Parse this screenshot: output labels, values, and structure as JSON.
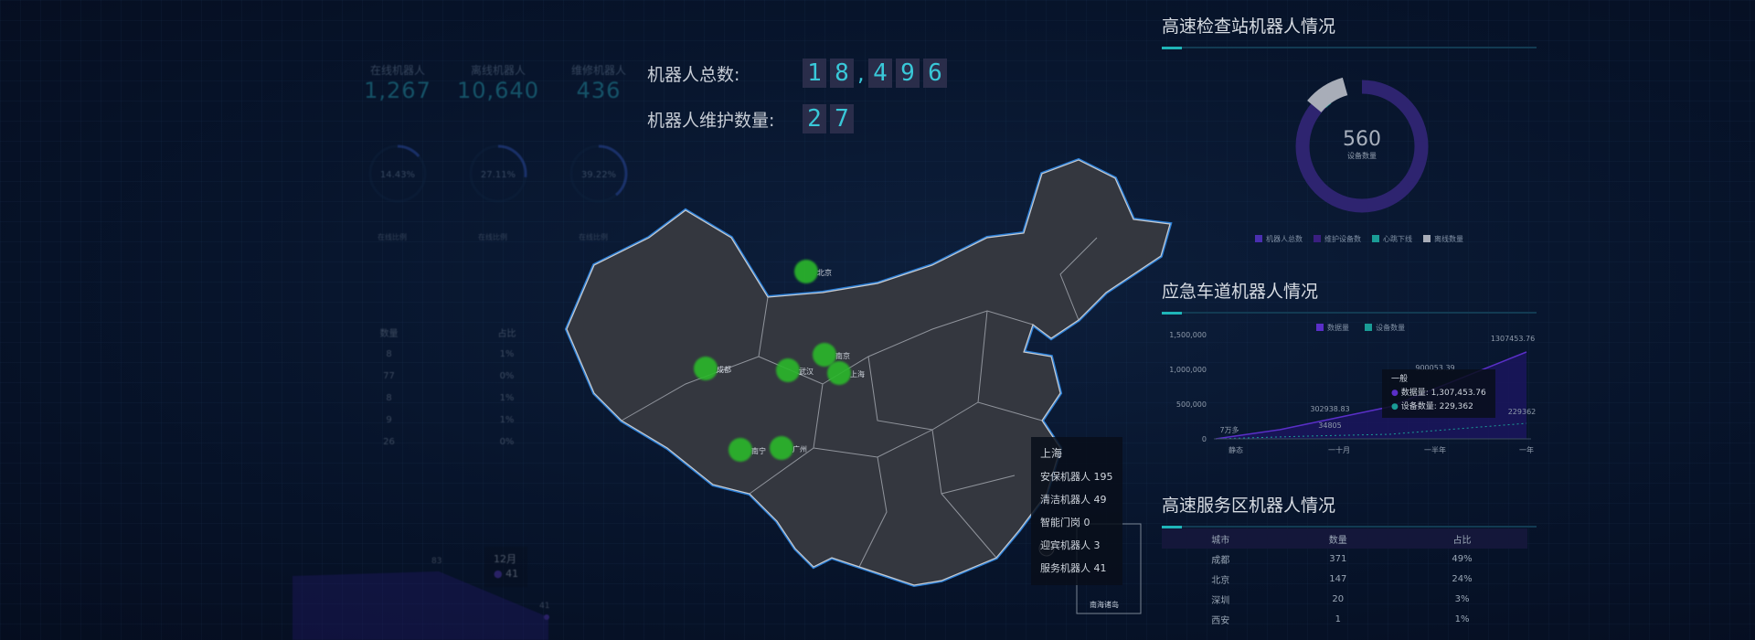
{
  "left_panel": {
    "kpis": [
      {
        "label": "在线机器人",
        "value": "1,267"
      },
      {
        "label": "离线机器人",
        "value": "10,640"
      },
      {
        "label": "维修机器人",
        "value": "436"
      }
    ],
    "gauges": [
      {
        "value": "14.43%",
        "fraction": 0.14
      },
      {
        "value": "27.11%",
        "fraction": 0.27
      },
      {
        "value": "39.22%",
        "fraction": 0.39
      }
    ],
    "gauge_legend": [
      "在线比例",
      "在线比例",
      "在线比例"
    ],
    "table": {
      "headers": [
        "数量",
        "占比"
      ],
      "rows": [
        [
          "8",
          "1%"
        ],
        [
          "77",
          "0%"
        ],
        [
          "8",
          "1%"
        ],
        [
          "9",
          "1%"
        ],
        [
          "26",
          "0%"
        ]
      ]
    },
    "area": {
      "labels": [
        "83",
        "41"
      ],
      "tooltip": {
        "title": "12月",
        "value": "41"
      }
    }
  },
  "stats": {
    "total_label": "机器人总数:",
    "total_digits": [
      "1",
      "8",
      ",",
      "4",
      "9",
      "6"
    ],
    "maint_label": "机器人维护数量:",
    "maint_digits": [
      "2",
      "7"
    ]
  },
  "map": {
    "cities": [
      {
        "name": "北京"
      },
      {
        "name": "成都"
      },
      {
        "name": "武汉"
      },
      {
        "name": "南京"
      },
      {
        "name": "上海"
      },
      {
        "name": "南宁"
      },
      {
        "name": "广州"
      }
    ],
    "tooltip": {
      "city": "上海",
      "rows": [
        "安保机器人 195",
        "清洁机器人 49",
        "智能门岗 0",
        "迎宾机器人 3",
        "服务机器人 41"
      ]
    },
    "inset_label": "南海诸岛"
  },
  "checkpoint": {
    "title": "高速检查站机器人情况",
    "center_value": "560",
    "center_label": "设备数量",
    "legend": [
      "机器人总数",
      "维护设备数",
      "心跳下线",
      "离线数量"
    ],
    "colors": {
      "primary": "#2e2470",
      "teal": "#1a9c96",
      "gray": "#a8adb8"
    },
    "slices": [
      0.88,
      0.02,
      0.1
    ]
  },
  "emergency": {
    "title": "应急车道机器人情况",
    "legend": [
      "数据量",
      "设备数量"
    ],
    "yticks": [
      "1,500,000",
      "1,000,000",
      "500,000",
      "0"
    ],
    "xticks": [
      "静态",
      "一十月",
      "一半年",
      "一年"
    ],
    "labels": [
      "7万多",
      "302938.83",
      "34805",
      "900053.39",
      "1307453.76",
      "229362"
    ],
    "tooltip": {
      "title": "一般",
      "rows": [
        "数据量: 1,307,453.76",
        "设备数量: 229,362"
      ]
    }
  },
  "service": {
    "title": "高速服务区机器人情况",
    "headers": [
      "城市",
      "数量",
      "占比"
    ],
    "rows": [
      [
        "成都",
        "371",
        "49%"
      ],
      [
        "北京",
        "147",
        "24%"
      ],
      [
        "深圳",
        "20",
        "3%"
      ],
      [
        "西安",
        "1",
        "1%"
      ]
    ]
  }
}
